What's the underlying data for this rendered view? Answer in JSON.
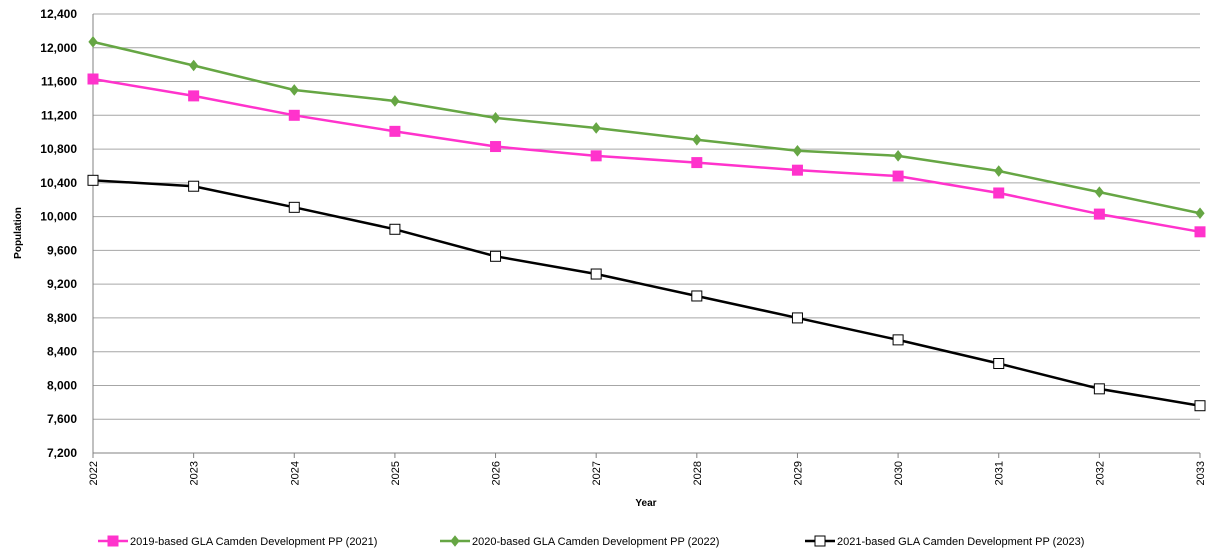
{
  "chart_data": {
    "type": "line",
    "title": "",
    "xlabel": "Year",
    "ylabel": "Population",
    "ylim": [
      7200,
      12400
    ],
    "y_ticks": [
      "7,200",
      "7,600",
      "8,000",
      "8,400",
      "8,800",
      "9,200",
      "9,600",
      "10,000",
      "10,400",
      "10,800",
      "11,200",
      "11,600",
      "12,000",
      "12,400"
    ],
    "y_tick_values": [
      7200,
      7600,
      8000,
      8400,
      8800,
      9200,
      9600,
      10000,
      10400,
      10800,
      11200,
      11600,
      12000,
      12400
    ],
    "categories": [
      "2022",
      "2023",
      "2024",
      "2025",
      "2026",
      "2027",
      "2028",
      "2029",
      "2030",
      "2031",
      "2032",
      "2033"
    ],
    "grid": true,
    "legend_position": "bottom",
    "series": [
      {
        "name": "2019-based GLA Camden Development PP (2021)",
        "color": "#ff33cc",
        "marker": "square-filled",
        "values": [
          11630,
          11430,
          11200,
          11010,
          10830,
          10720,
          10640,
          10550,
          10480,
          10280,
          10030,
          9820
        ]
      },
      {
        "name": "2020-based GLA Camden Development PP (2022)",
        "color": "#66a644",
        "marker": "diamond-filled",
        "values": [
          12070,
          11790,
          11500,
          11370,
          11170,
          11050,
          10910,
          10780,
          10720,
          10540,
          10290,
          10040
        ]
      },
      {
        "name": "2021-based GLA Camden Development PP (2023)",
        "color": "#000000",
        "marker": "square-open",
        "values": [
          10430,
          10360,
          10110,
          9850,
          9530,
          9320,
          9060,
          8800,
          8540,
          8260,
          7960,
          7760
        ]
      }
    ]
  }
}
